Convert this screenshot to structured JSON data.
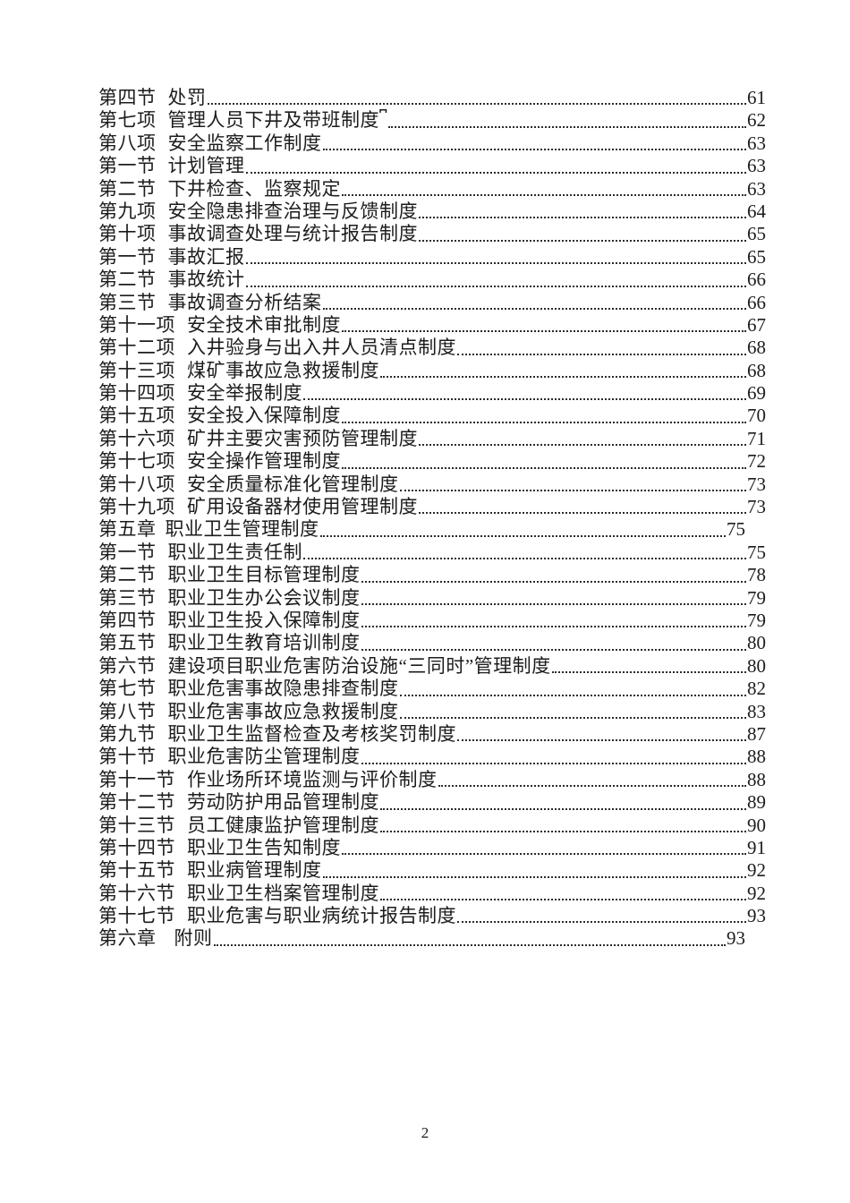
{
  "document": {
    "footer_page_number": "2"
  },
  "toc": {
    "entries": [
      {
        "label": "第四节",
        "title": "处罚",
        "page": "61",
        "level": "section"
      },
      {
        "label": "第七项",
        "title": "管理人员下井及带班制度⎴",
        "page": "62",
        "level": "section"
      },
      {
        "label": "第八项",
        "title": "安全监察工作制度",
        "page": "63",
        "level": "section"
      },
      {
        "label": "第一节",
        "title": "计划管理",
        "page": "63",
        "level": "section"
      },
      {
        "label": "第二节",
        "title": "下井检查、监察规定",
        "page": "63",
        "level": "section"
      },
      {
        "label": "第九项",
        "title": "安全隐患排查治理与反馈制度",
        "page": "64",
        "level": "section"
      },
      {
        "label": "第十项",
        "title": "事故调查处理与统计报告制度",
        "page": "65",
        "level": "section"
      },
      {
        "label": "第一节",
        "title": "事故汇报",
        "page": "65",
        "level": "section"
      },
      {
        "label": "第二节",
        "title": "事故统计",
        "page": "66",
        "level": "section"
      },
      {
        "label": "第三节",
        "title": "事故调查分析结案",
        "page": "66",
        "level": "section"
      },
      {
        "label": "第十一项",
        "title": "安全技术审批制度",
        "page": "67",
        "level": "section"
      },
      {
        "label": "第十二项",
        "title": "入井验身与出入井人员清点制度",
        "page": "68",
        "level": "section"
      },
      {
        "label": "第十三项",
        "title": "煤矿事故应急救援制度",
        "page": "68",
        "level": "section"
      },
      {
        "label": "第十四项",
        "title": "安全举报制度",
        "page": "69",
        "level": "section"
      },
      {
        "label": "第十五项",
        "title": "安全投入保障制度",
        "page": "70",
        "level": "section"
      },
      {
        "label": "第十六项",
        "title": "矿井主要灾害预防管理制度",
        "page": "71",
        "level": "section"
      },
      {
        "label": "第十七项",
        "title": "安全操作管理制度",
        "page": "72",
        "level": "section"
      },
      {
        "label": "第十八项",
        "title": "安全质量标准化管理制度",
        "page": "73",
        "level": "section"
      },
      {
        "label": "第十九项",
        "title": "矿用设备器材使用管理制度",
        "page": "73",
        "level": "section"
      },
      {
        "label": "第五章",
        "title": "职业卫生管理制度",
        "page": "75",
        "level": "chapter"
      },
      {
        "label": "第一节",
        "title": "职业卫生责任制",
        "page": "75",
        "level": "section"
      },
      {
        "label": "第二节",
        "title": "职业卫生目标管理制度",
        "page": "78",
        "level": "section"
      },
      {
        "label": "第三节",
        "title": "职业卫生办公会议制度",
        "page": "79",
        "level": "section"
      },
      {
        "label": "第四节",
        "title": "职业卫生投入保障制度",
        "page": "79",
        "level": "section"
      },
      {
        "label": "第五节",
        "title": "职业卫生教育培训制度",
        "page": "80",
        "level": "section"
      },
      {
        "label": "第六节",
        "title": "建设项目职业危害防治设施“三同时”管理制度",
        "page": "80",
        "level": "section"
      },
      {
        "label": "第七节",
        "title": "职业危害事故隐患排查制度",
        "page": "82",
        "level": "section"
      },
      {
        "label": "第八节",
        "title": "职业危害事故应急救援制度",
        "page": "83",
        "level": "section"
      },
      {
        "label": "第九节",
        "title": "职业卫生监督检查及考核奖罚制度",
        "page": "87",
        "level": "section"
      },
      {
        "label": "第十节",
        "title": "职业危害防尘管理制度",
        "page": "88",
        "level": "section"
      },
      {
        "label": "第十一节",
        "title": "作业场所环境监测与评价制度",
        "page": "88",
        "level": "section"
      },
      {
        "label": "第十二节",
        "title": "劳动防护用品管理制度",
        "page": "89",
        "level": "section"
      },
      {
        "label": "第十三节",
        "title": "员工健康监护管理制度",
        "page": "90",
        "level": "section"
      },
      {
        "label": "第十四节",
        "title": "职业卫生告知制度",
        "page": "91",
        "level": "section"
      },
      {
        "label": "第十五节",
        "title": "职业病管理制度",
        "page": "92",
        "level": "section"
      },
      {
        "label": "第十六节",
        "title": "职业卫生档案管理制度",
        "page": "92",
        "level": "section"
      },
      {
        "label": "第十七节",
        "title": "职业危害与职业病统计报告制度",
        "page": "93",
        "level": "section"
      },
      {
        "label": "第六章",
        "title": "附则",
        "page": "93",
        "level": "chapter"
      }
    ]
  }
}
